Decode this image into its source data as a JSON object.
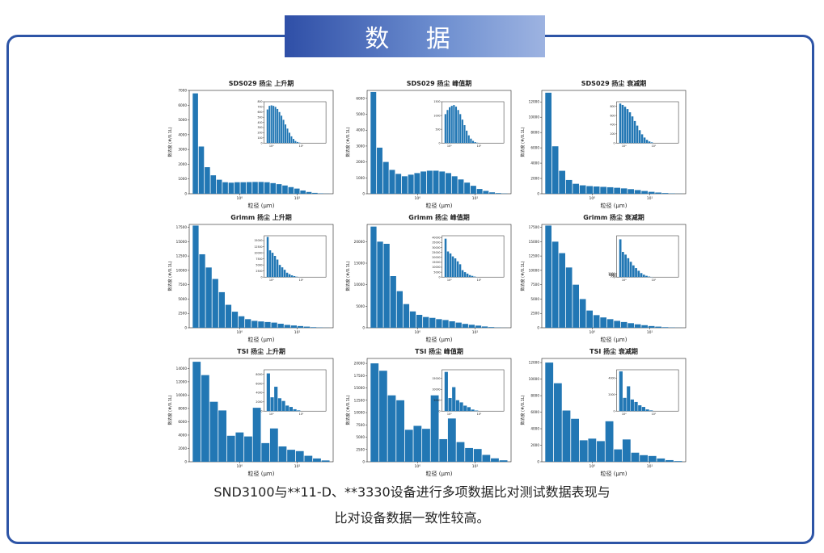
{
  "banner_title": "数 据",
  "caption_line1": "SND3100与**11-D、**3330设备进行多项数据比对测试数据表现与",
  "caption_line2": "比对设备数据一致性较高。",
  "colors": {
    "bar": "#2277b4",
    "frame": "#2d54a6"
  },
  "chart_data": [
    {
      "type": "bar",
      "title": "SDS029 扬尘 上升期",
      "xlabel": "粒径 (μm)",
      "ylabel": "数浓度 (#/0.1L)",
      "ylim": [
        0,
        7000
      ],
      "yticks": [
        0,
        1000,
        2000,
        3000,
        4000,
        5000,
        6000,
        7000
      ],
      "xtick_labels": [
        "10⁰",
        "10¹"
      ],
      "values": [
        6800,
        3200,
        1800,
        1250,
        950,
        780,
        750,
        780,
        780,
        790,
        800,
        800,
        780,
        720,
        650,
        560,
        450,
        350,
        220,
        120,
        60,
        25,
        10
      ],
      "inset": {
        "ylim": [
          0,
          800
        ],
        "yticks": [
          0,
          100,
          200,
          300,
          400,
          500,
          600,
          700,
          800
        ],
        "xtick_labels": [
          "10⁰",
          "10¹"
        ],
        "values": [
          650,
          720,
          730,
          720,
          700,
          660,
          600,
          530,
          450,
          360,
          280,
          200,
          130,
          80,
          40,
          20,
          8
        ]
      }
    },
    {
      "type": "bar",
      "title": "SDS029 扬尘 峰值期",
      "xlabel": "粒径 (μm)",
      "ylabel": "数浓度 (#/0.1L)",
      "ylim": [
        0,
        6500
      ],
      "yticks": [
        0,
        1000,
        2000,
        3000,
        4000,
        5000,
        6000
      ],
      "xtick_labels": [
        "10⁰",
        "10¹"
      ],
      "values": [
        6400,
        2900,
        2000,
        1500,
        1250,
        1100,
        1200,
        1300,
        1400,
        1450,
        1450,
        1400,
        1300,
        1100,
        900,
        700,
        500,
        300,
        180,
        90,
        40,
        15
      ],
      "inset": {
        "ylim": [
          0,
          1500
        ],
        "yticks": [
          0,
          500,
          1000,
          1500
        ],
        "xtick_labels": [
          "10⁰",
          "10¹"
        ],
        "values": [
          1050,
          1200,
          1300,
          1350,
          1380,
          1320,
          1200,
          1050,
          850,
          650,
          450,
          280,
          160,
          80,
          35,
          12
        ]
      }
    },
    {
      "type": "bar",
      "title": "SDS029 扬尘 衰减期",
      "xlabel": "粒径 (μm)",
      "ylabel": "数浓度 (#/0.1L)",
      "ylim": [
        0,
        13500
      ],
      "yticks": [
        0,
        2000,
        4000,
        6000,
        8000,
        10000,
        12000
      ],
      "xtick_labels": [
        "10⁰",
        "10¹"
      ],
      "values": [
        13200,
        6200,
        3000,
        1800,
        1300,
        1100,
        1000,
        950,
        900,
        850,
        780,
        700,
        600,
        480,
        360,
        250,
        160,
        90,
        40,
        15
      ],
      "inset": {
        "ylim": [
          0,
          900
        ],
        "yticks": [
          0,
          200,
          400,
          600,
          800
        ],
        "xtick_labels": [
          "10⁰",
          "10¹"
        ],
        "values": [
          860,
          830,
          790,
          740,
          670,
          580,
          480,
          380,
          280,
          190,
          120,
          70,
          35,
          15
        ]
      }
    },
    {
      "type": "bar",
      "title": "Grimm 扬尘 上升期",
      "xlabel": "粒径 (μm)",
      "ylabel": "数浓度 (#/0.1L)",
      "ylim": [
        0,
        18000
      ],
      "yticks": [
        0,
        2500,
        5000,
        7500,
        10000,
        12500,
        15000,
        17500
      ],
      "xtick_labels": [
        "10⁰",
        "10¹"
      ],
      "values": [
        17800,
        12800,
        10500,
        8500,
        6200,
        4000,
        2800,
        2000,
        1500,
        1200,
        1100,
        1000,
        900,
        700,
        500,
        400,
        300,
        200,
        100,
        50,
        20
      ],
      "inset": {
        "ylim": [
          0,
          17000
        ],
        "yticks": [
          0,
          2500,
          5000,
          7500,
          10000,
          12500,
          15000
        ],
        "xtick_labels": [
          "10⁰",
          "10¹"
        ],
        "values": [
          16500,
          11000,
          10000,
          8700,
          7200,
          5000,
          4000,
          3000,
          1800,
          1200,
          700,
          400,
          150,
          50
        ]
      }
    },
    {
      "type": "bar",
      "title": "Grimm 扬尘 峰值期",
      "xlabel": "粒径 (μm)",
      "ylabel": "数浓度 (#/0.1L)",
      "ylim": [
        0,
        24000
      ],
      "yticks": [
        0,
        5000,
        10000,
        15000,
        20000
      ],
      "xtick_labels": [
        "10⁰",
        "10¹"
      ],
      "values": [
        23500,
        20000,
        19500,
        12000,
        8500,
        5500,
        3800,
        3000,
        2500,
        2300,
        2000,
        1800,
        1500,
        1200,
        900,
        700,
        500,
        300,
        150,
        60,
        20
      ],
      "inset": {
        "ylim": [
          0,
          42000
        ],
        "yticks": [
          0,
          5000,
          10000,
          15000,
          20000,
          25000,
          30000,
          35000,
          40000
        ],
        "xtick_labels": [
          "10⁰",
          "10¹"
        ],
        "values": [
          39000,
          26000,
          24000,
          21000,
          19000,
          16000,
          13000,
          7000,
          5000,
          3500,
          2000,
          1200,
          500,
          150
        ]
      }
    },
    {
      "type": "bar",
      "title": "Grimm 扬尘 衰减期",
      "xlabel": "粒径 (μm)",
      "ylabel": "数浓度 (#/0.1L)",
      "ylim": [
        0,
        18000
      ],
      "yticks": [
        0,
        2500,
        5000,
        7500,
        10000,
        12500,
        15000,
        17500
      ],
      "xtick_labels": [
        "10⁰",
        "10¹"
      ],
      "values": [
        17800,
        15000,
        13000,
        10500,
        7500,
        5000,
        3000,
        2200,
        1800,
        1500,
        1200,
        1000,
        800,
        600,
        450,
        300,
        200,
        100,
        50,
        20
      ],
      "inset": {
        "ylim": [
          0,
          23000
        ],
        "yticks": [
          0,
          500,
          1000,
          1500,
          2000
        ],
        "xtick_labels": [
          "10⁰",
          "10¹"
        ],
        "values": [
          21000,
          14000,
          12500,
          10500,
          8500,
          6500,
          5000,
          3500,
          2200,
          1300,
          700,
          300,
          100
        ]
      }
    },
    {
      "type": "bar",
      "title": "TSI 扬尘 上升期",
      "xlabel": "粒径 (μm)",
      "ylabel": "数浓度 (#/0.1L)",
      "ylim": [
        0,
        15500
      ],
      "yticks": [
        0,
        2000,
        4000,
        6000,
        8000,
        10000,
        12000,
        14000
      ],
      "xtick_labels": [
        "10⁰",
        "10¹"
      ],
      "values": [
        15000,
        13000,
        9000,
        7700,
        3900,
        4400,
        3800,
        8100,
        2800,
        5000,
        2300,
        1800,
        1600,
        900,
        500,
        200
      ],
      "inset": {
        "ylim": [
          0,
          9000
        ],
        "yticks": [
          0,
          2000,
          4000,
          6000,
          8000
        ],
        "xtick_labels": [
          "10⁰",
          "10¹"
        ],
        "values": [
          8200,
          3000,
          5300,
          2800,
          2200,
          1200,
          900,
          400,
          150
        ]
      }
    },
    {
      "type": "bar",
      "title": "TSI 扬尘 峰值期",
      "xlabel": "粒径 (μm)",
      "ylabel": "数浓度 (#/0.1L)",
      "ylim": [
        0,
        21000
      ],
      "yticks": [
        0,
        2500,
        5000,
        7500,
        10000,
        12500,
        15000,
        17500,
        20000
      ],
      "xtick_labels": [
        "10⁰",
        "10¹"
      ],
      "values": [
        20000,
        18500,
        13500,
        12500,
        6500,
        7300,
        6700,
        13500,
        4600,
        8800,
        4000,
        2800,
        2600,
        1400,
        700,
        300
      ],
      "inset": {
        "ylim": [
          0,
          19000
        ],
        "yticks": [
          0,
          5000,
          10000,
          15000
        ],
        "xtick_labels": [
          "10⁰",
          "10¹"
        ],
        "values": [
          18000,
          6000,
          11000,
          5000,
          4000,
          2500,
          1800,
          700,
          250
        ]
      }
    },
    {
      "type": "bar",
      "title": "TSI 扬尘 衰减期",
      "xlabel": "粒径 (μm)",
      "ylabel": "数浓度 (#/0.1L)",
      "ylim": [
        0,
        12500
      ],
      "yticks": [
        0,
        2000,
        4000,
        6000,
        8000,
        10000,
        12000
      ],
      "xtick_labels": [
        "10⁰",
        "10¹"
      ],
      "values": [
        12000,
        9500,
        6200,
        5200,
        2600,
        2800,
        2500,
        4900,
        1500,
        2700,
        1100,
        800,
        700,
        400,
        200,
        80
      ],
      "inset": {
        "ylim": [
          0,
          5000
        ],
        "yticks": [
          0,
          2000,
          4000
        ],
        "xtick_labels": [
          "10⁰",
          "10¹"
        ],
        "values": [
          4800,
          1600,
          3000,
          1400,
          1100,
          700,
          500,
          200,
          80
        ]
      }
    }
  ]
}
